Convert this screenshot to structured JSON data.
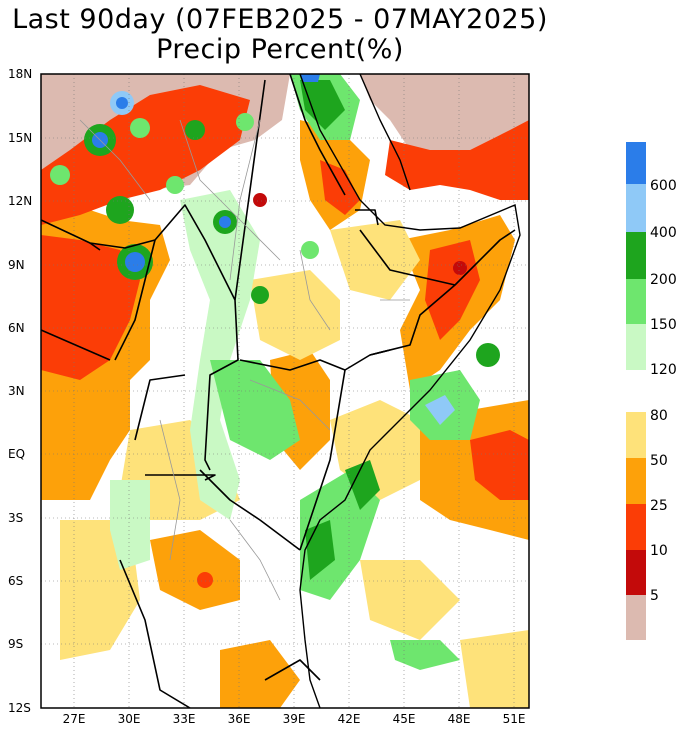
{
  "title": {
    "line1": "Last 90day (07FEB2025 - 07MAY2025)",
    "line2": "Precip Percent(%)"
  },
  "axes": {
    "lat_ticks": [
      "18N",
      "15N",
      "12N",
      "9N",
      "6N",
      "3N",
      "EQ",
      "3S",
      "6S",
      "9S",
      "12S"
    ],
    "lon_ticks": [
      "27E",
      "30E",
      "33E",
      "36E",
      "39E",
      "42E",
      "45E",
      "48E",
      "51E"
    ],
    "lat_range": [
      -12,
      18
    ],
    "lon_range": [
      24,
      52.5
    ]
  },
  "legend": {
    "labels": [
      "600",
      "400",
      "200",
      "150",
      "120",
      "80",
      "50",
      "25",
      "10",
      "5"
    ],
    "colors": {
      "gt600": "#2b7de9",
      "b400_600": "#8fc9f7",
      "b200_400": "#1ea51e",
      "b150_200": "#6ee66e",
      "b120_150": "#c9f9c4",
      "b80_120": "#ffffff",
      "b50_80": "#fee27a",
      "b25_50": "#fda10a",
      "b10_25": "#fb3d06",
      "b5_10": "#c30a0a",
      "lt5": "#dcbab0"
    }
  }
}
